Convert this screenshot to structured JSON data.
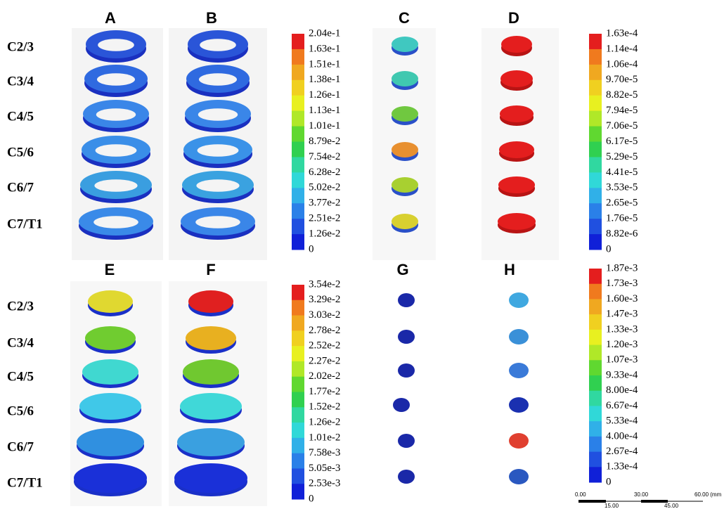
{
  "panel_labels": [
    "A",
    "B",
    "C",
    "D",
    "E",
    "F",
    "G",
    "H"
  ],
  "top_levels": [
    "C2/3",
    "C3/4",
    "C4/5",
    "C5/6",
    "C6/7",
    "C7/T1"
  ],
  "bottom_levels": [
    "C2/3",
    "C3/4",
    "C4/5",
    "C5/6",
    "C6/7",
    "C7/T1"
  ],
  "colorbars": [
    {
      "labels": [
        "2.04e-1",
        "1.63e-1",
        "1.51e-1",
        "1.38e-1",
        "1.26e-1",
        "1.13e-1",
        "1.01e-1",
        "8.79e-2",
        "7.54e-2",
        "6.28e-2",
        "5.02e-2",
        "3.77e-2",
        "2.51e-2",
        "1.26e-2",
        "0"
      ]
    },
    {
      "labels": [
        "1.63e-4",
        "1.14e-4",
        "1.06e-4",
        "9.70e-5",
        "8.82e-5",
        "7.94e-5",
        "7.06e-5",
        "6.17e-5",
        "5.29e-5",
        "4.41e-5",
        "3.53e-5",
        "2.65e-5",
        "1.76e-5",
        "8.82e-6",
        "0"
      ]
    },
    {
      "labels": [
        "3.54e-2",
        "3.29e-2",
        "3.03e-2",
        "2.78e-2",
        "2.52e-2",
        "2.27e-2",
        "2.02e-2",
        "1.77e-2",
        "1.52e-2",
        "1.26e-2",
        "1.01e-2",
        "7.58e-3",
        "5.05e-3",
        "2.53e-3",
        "0"
      ]
    },
    {
      "labels": [
        "1.87e-3",
        "1.73e-3",
        "1.60e-3",
        "1.47e-3",
        "1.33e-3",
        "1.20e-3",
        "1.07e-3",
        "9.33e-4",
        "8.00e-4",
        "6.67e-4",
        "5.33e-4",
        "4.00e-4",
        "2.67e-4",
        "1.33e-4",
        "0"
      ]
    }
  ],
  "scale_bar": {
    "top_labels": [
      "0.00",
      "30.00",
      "60.00 (mm"
    ],
    "bottom_labels": [
      "15.00",
      "45.00"
    ]
  }
}
